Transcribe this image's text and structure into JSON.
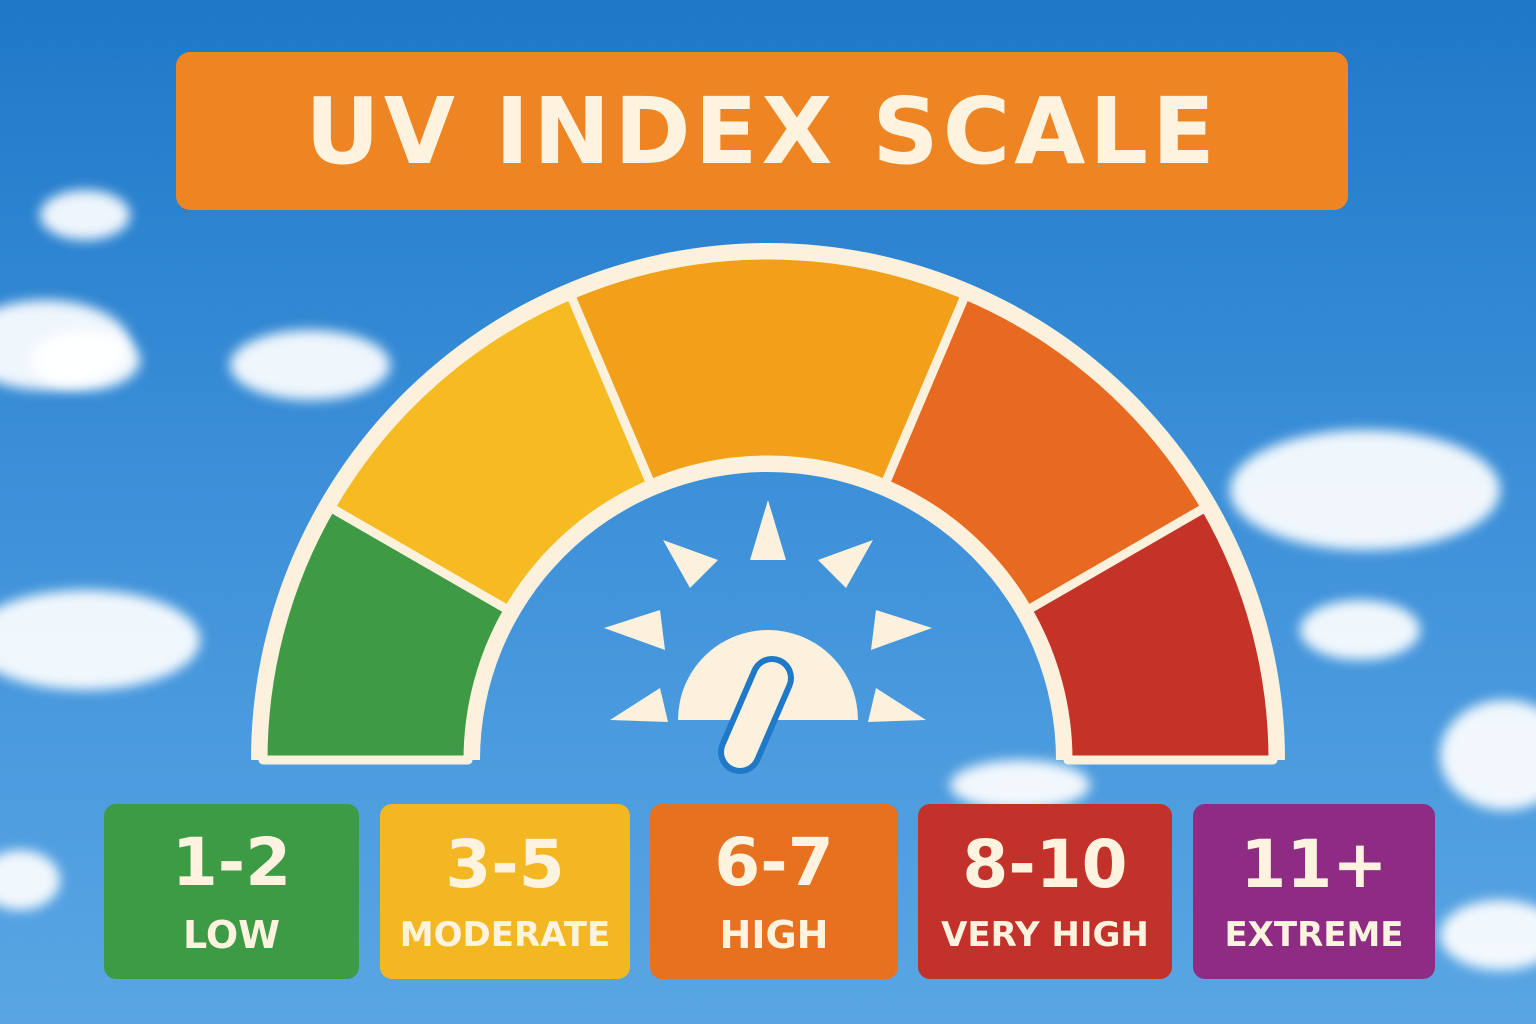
{
  "title": "UV INDEX SCALE",
  "gauge": {
    "segments": [
      {
        "level": "low",
        "color": "#3e9a44"
      },
      {
        "level": "moderate",
        "color": "#f6ba22"
      },
      {
        "level": "high",
        "color": "#f2a01a"
      },
      {
        "level": "very-high",
        "color": "#e86a20"
      },
      {
        "level": "extreme",
        "color": "#c53228"
      }
    ],
    "outline_color": "#fbf1dc",
    "center_icon": "sun-gauge-icon"
  },
  "categories": [
    {
      "range": "1-2",
      "label": "LOW",
      "color": "#3d9a45"
    },
    {
      "range": "3-5",
      "label": "MODERATE",
      "color": "#f4b724"
    },
    {
      "range": "6-7",
      "label": "HIGH",
      "color": "#e8711f"
    },
    {
      "range": "8-10",
      "label": "VERY HIGH",
      "color": "#c2312a"
    },
    {
      "range": "11+",
      "label": "EXTREME",
      "color": "#8e2c83"
    }
  ]
}
